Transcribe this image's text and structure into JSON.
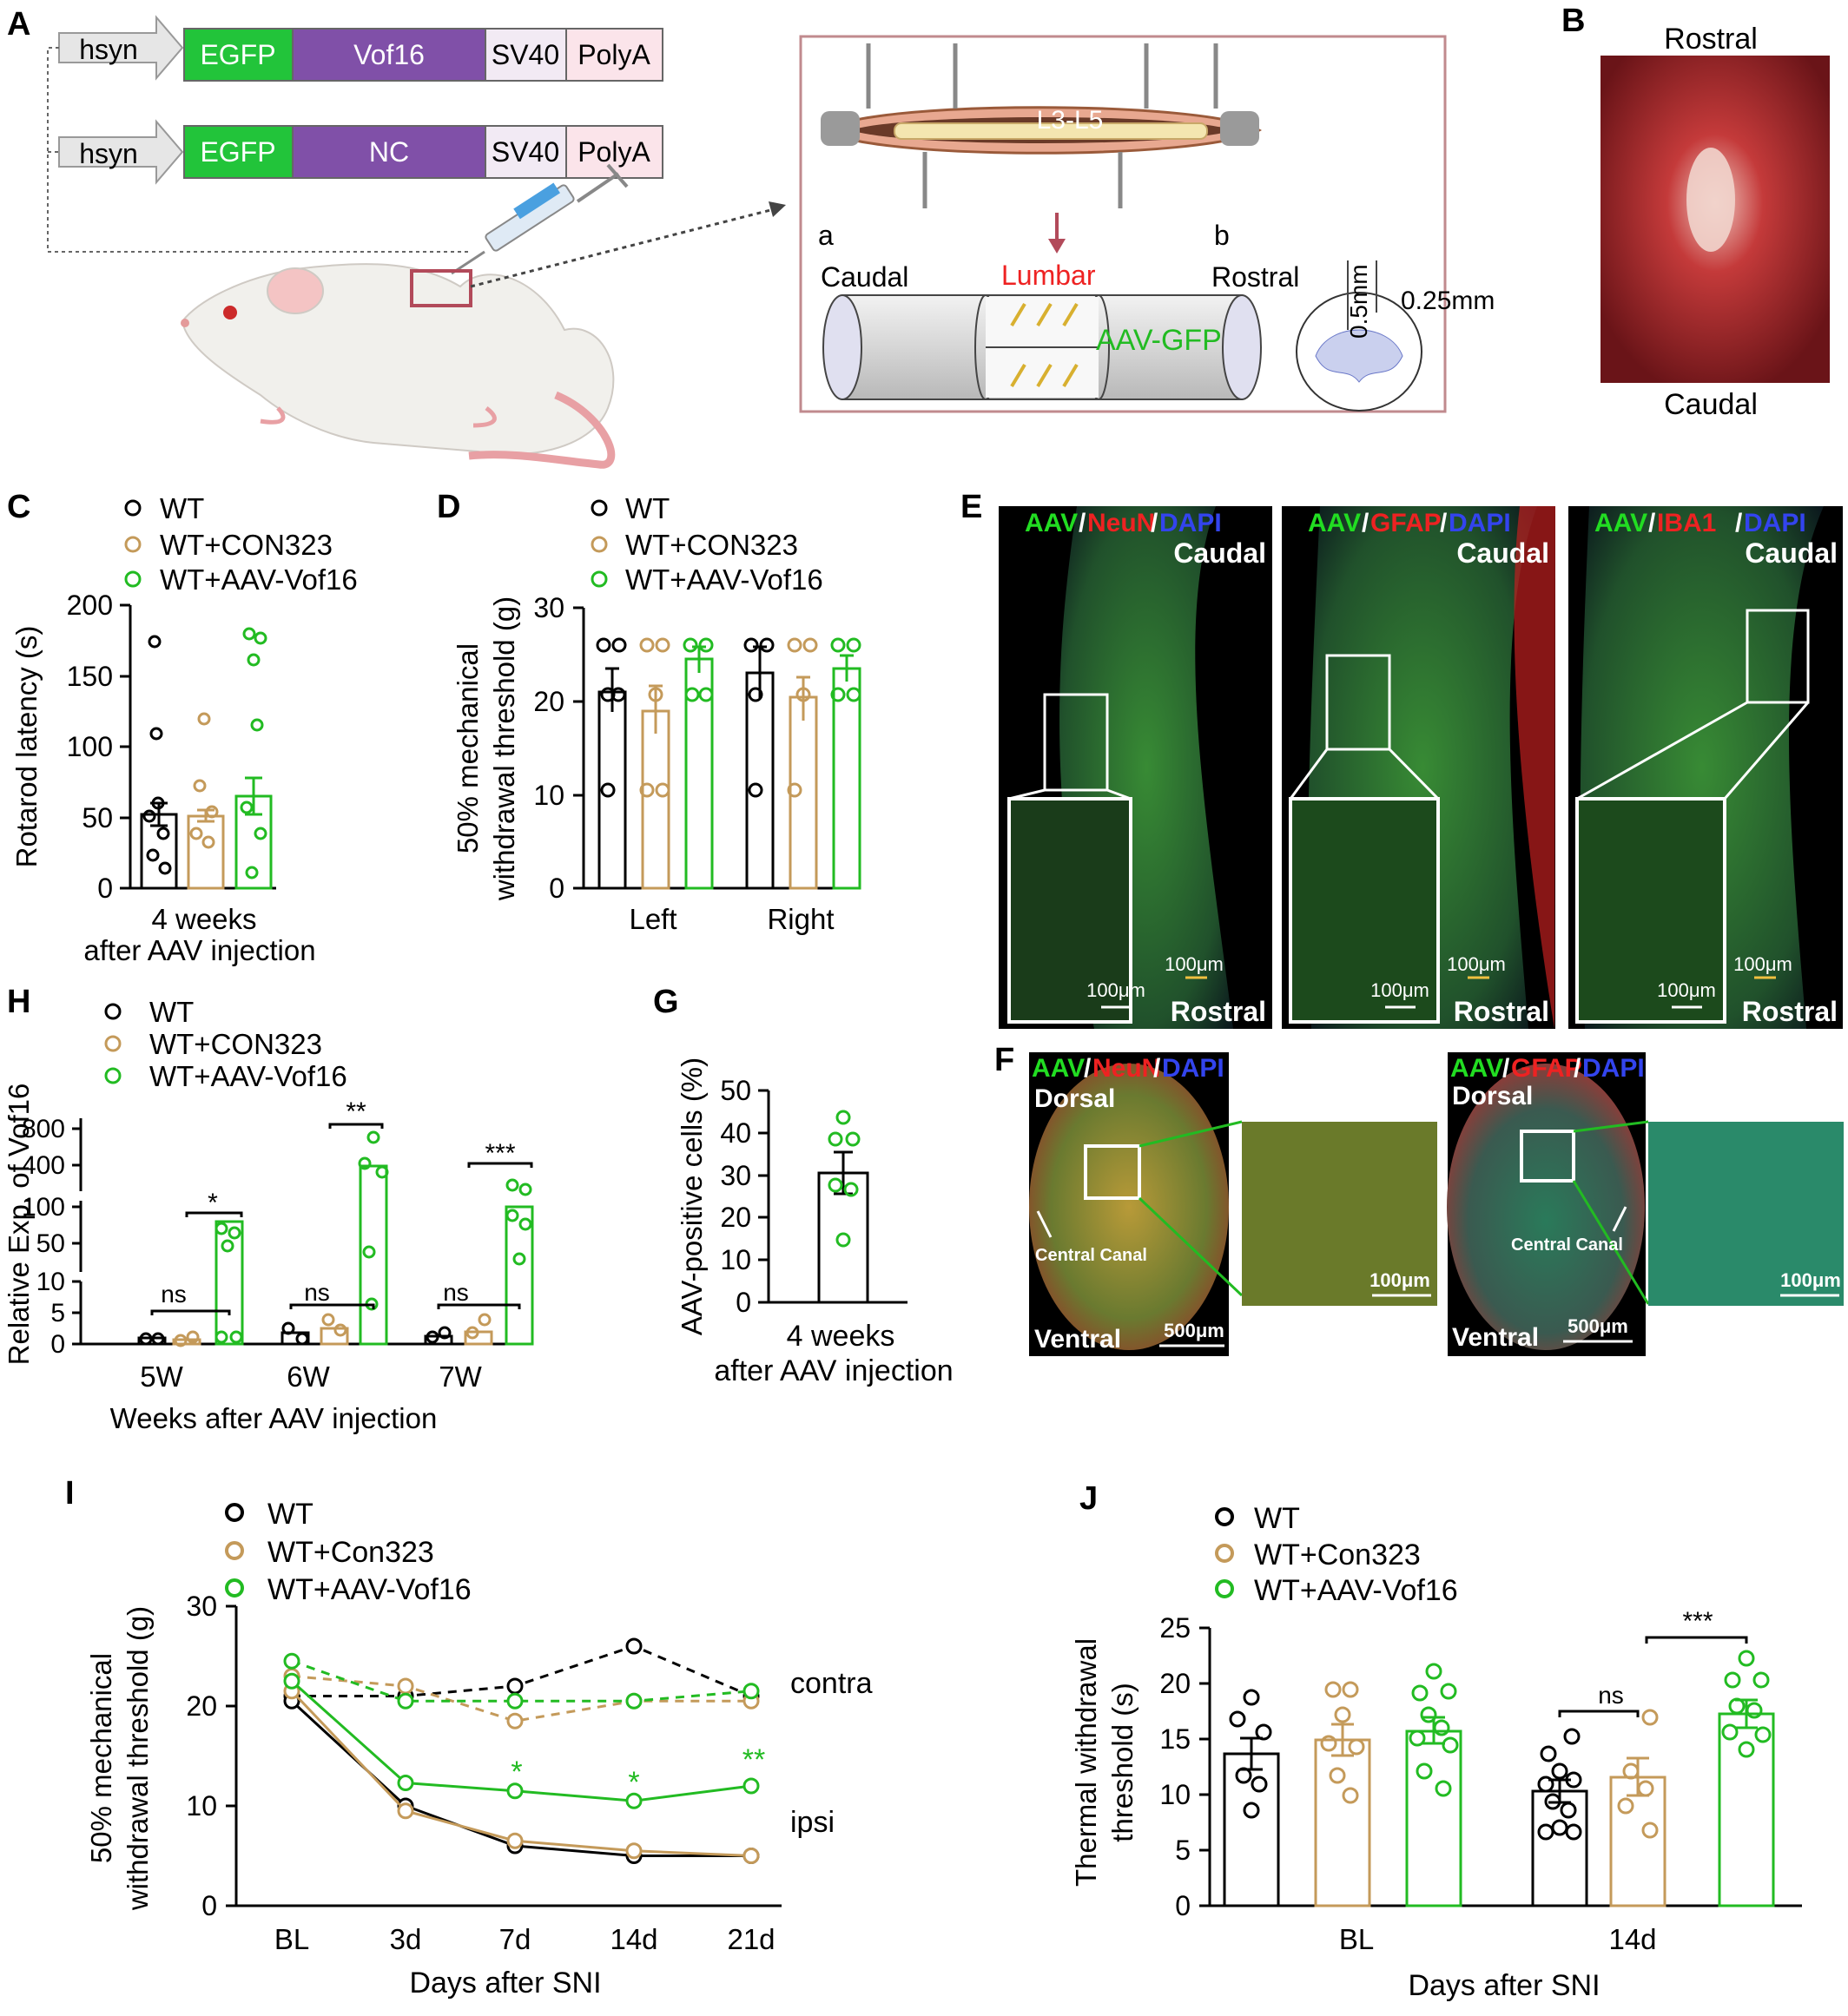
{
  "panel_labels": {
    "A": "A",
    "B": "B",
    "C": "C",
    "D": "D",
    "E": "E",
    "F": "F",
    "G": "G",
    "H": "H",
    "I": "I",
    "J": "J"
  },
  "colors": {
    "wt": "#000000",
    "con": "#c49a5a",
    "aav": "#22bb22",
    "egfp": "#22c43a",
    "vof": "#8050a8",
    "sv40": "#f2eaf4",
    "polya": "#fbe4ea",
    "hsyn": "#e8e8e8",
    "tissue": "#b02028",
    "red_label": "#ee2222",
    "blue_label": "#3344ee"
  },
  "legend3": {
    "wt": "WT",
    "con": "WT+CON323",
    "aav": "WT+AAV-Vof16"
  },
  "legend3b": {
    "wt": "WT",
    "con": "WT+Con323",
    "aav": "WT+AAV-Vof16"
  },
  "panelA": {
    "construct1": [
      "hsyn",
      "EGFP",
      "Vof16",
      "SV40",
      "PolyA"
    ],
    "construct2": [
      "hsyn",
      "EGFP",
      "NC",
      "SV40",
      "PolyA"
    ],
    "segment": "L3-L5",
    "a": "a",
    "b": "b",
    "caudal": "Caudal",
    "lumbar": "Lumbar",
    "rostral": "Rostral",
    "aavgfp": "AAV-GFP",
    "d05": "0.5mm",
    "d025": "0.25mm"
  },
  "panelB": {
    "top": "Rostral",
    "bottom": "Caudal"
  },
  "panelC": {
    "ylabel": "Rotarod latency (s)",
    "xlabel1": "4 weeks",
    "xlabel2": "after AAV injection",
    "ticks": [
      "0",
      "50",
      "100",
      "150",
      "200"
    ],
    "chart_data": {
      "type": "bar",
      "categories": [
        "WT",
        "WT+CON323",
        "WT+AAV-Vof16"
      ],
      "values": [
        52,
        51,
        65
      ],
      "sem": [
        8,
        4,
        13
      ],
      "ylim": [
        0,
        200
      ],
      "ylabel": "Rotarod latency (s)"
    }
  },
  "panelD": {
    "ylabel1": "50% mechanical",
    "ylabel2": "withdrawal threshold (g)",
    "ticks": [
      "0",
      "10",
      "20",
      "30"
    ],
    "groups": [
      "Left",
      "Right"
    ],
    "chart_data": {
      "type": "bar",
      "categories": [
        "Left",
        "Right"
      ],
      "series": [
        {
          "name": "WT",
          "values": [
            21,
            23
          ]
        },
        {
          "name": "WT+CON323",
          "values": [
            19,
            20.5
          ]
        },
        {
          "name": "WT+AAV-Vof16",
          "values": [
            24.5,
            23.5
          ]
        }
      ],
      "ylim": [
        0,
        30
      ]
    }
  },
  "panelE": {
    "images": [
      {
        "aav": "AAV",
        "marker": "NeuN",
        "dapi": "DAPI"
      },
      {
        "aav": "AAV",
        "marker": "GFAP",
        "dapi": "DAPI"
      },
      {
        "aav": "AAV",
        "marker": "IBA1",
        "dapi": "DAPI"
      }
    ],
    "sep": "/",
    "caudal": "Caudal",
    "rostral": "Rostral",
    "scale": "100μm"
  },
  "panelF": {
    "images": [
      {
        "aav": "AAV",
        "marker": "NeuN",
        "dapi": "DAPI"
      },
      {
        "aav": "AAV",
        "marker": "GFAP",
        "dapi": "DAPI"
      }
    ],
    "dorsal": "Dorsal",
    "ventral": "Ventral",
    "canal": "Central Canal",
    "scale500": "500μm",
    "scale100": "100μm"
  },
  "panelG": {
    "ylabel": "AAV-positive cells (%)",
    "xlabel1": "4 weeks",
    "xlabel2": "after AAV injection",
    "ticks": [
      "0",
      "10",
      "20",
      "30",
      "40",
      "50"
    ],
    "chart_data": {
      "type": "bar",
      "categories": [
        "4 weeks"
      ],
      "values": [
        30.5
      ],
      "sem": [
        5
      ],
      "ylim": [
        0,
        50
      ]
    }
  },
  "panelH": {
    "ylabel": "Relative Exp. of Vof16",
    "xlabel": "Weeks after AAV injection",
    "ticks": [
      "0",
      "5",
      "10",
      "50",
      "100",
      "400",
      "800"
    ],
    "groups": [
      "5W",
      "6W",
      "7W"
    ],
    "sig": [
      "ns",
      "*",
      "ns",
      "**",
      "ns",
      "***"
    ],
    "chart_data": {
      "type": "bar",
      "categories": [
        "5W",
        "6W",
        "7W"
      ],
      "series": [
        {
          "name": "WT",
          "values": [
            1,
            1.8,
            1.2
          ]
        },
        {
          "name": "WT+CON323",
          "values": [
            0.8,
            2.5,
            2
          ]
        },
        {
          "name": "WT+AAV-Vof16",
          "values": [
            40,
            300,
            110
          ]
        }
      ]
    }
  },
  "panelI": {
    "ylabel1": "50% mechanical",
    "ylabel2": "withdrawal threshold (g)",
    "xlabel": "Days after SNI",
    "ticks": [
      "0",
      "10",
      "20",
      "30"
    ],
    "categories": [
      "BL",
      "3d",
      "7d",
      "14d",
      "21d"
    ],
    "contra": "contra",
    "ipsi": "ipsi",
    "stars": [
      "*",
      "*",
      "**"
    ],
    "chart_data": {
      "type": "line",
      "categories": [
        "BL",
        "3d",
        "7d",
        "14d",
        "21d"
      ],
      "series": [
        {
          "name": "WT contra",
          "values": [
            21,
            21,
            22,
            26,
            21
          ]
        },
        {
          "name": "WT+Con323 contra",
          "values": [
            23,
            22,
            18.5,
            20.5,
            20.5
          ]
        },
        {
          "name": "WT+AAV-Vof16 contra",
          "values": [
            24.5,
            20.5,
            20.5,
            20.5,
            21.5
          ]
        },
        {
          "name": "WT ipsi",
          "values": [
            20.5,
            10,
            6,
            5,
            5
          ]
        },
        {
          "name": "WT+Con323 ipsi",
          "values": [
            21.5,
            9.5,
            6.5,
            5.5,
            5
          ]
        },
        {
          "name": "WT+AAV-Vof16 ipsi",
          "values": [
            22.5,
            12.3,
            11.5,
            10.5,
            12
          ]
        }
      ],
      "ylim": [
        0,
        30
      ]
    }
  },
  "panelJ": {
    "ylabel1": "Thermal withdrawal",
    "ylabel2": "threshold (s)",
    "xlabel": "Days after SNI",
    "ticks": [
      "0",
      "5",
      "10",
      "15",
      "20",
      "25"
    ],
    "groups": [
      "BL",
      "14d"
    ],
    "sig": [
      "ns",
      "***"
    ],
    "chart_data": {
      "type": "bar",
      "categories": [
        "BL",
        "14d"
      ],
      "series": [
        {
          "name": "WT",
          "values": [
            13.7,
            10.3
          ]
        },
        {
          "name": "WT+Con323",
          "values": [
            14.9,
            11.6
          ]
        },
        {
          "name": "WT+AAV-Vof16",
          "values": [
            15.7,
            17.3
          ]
        }
      ],
      "ylim": [
        0,
        25
      ]
    }
  }
}
